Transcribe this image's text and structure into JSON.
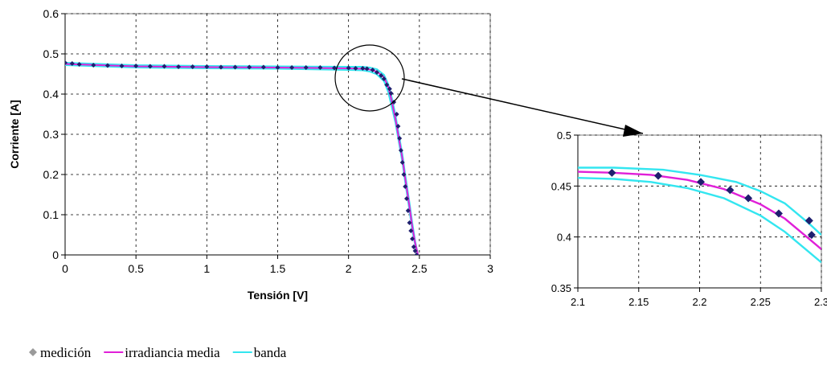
{
  "chart_data": [
    {
      "type": "line",
      "xlabel": "Tensión [V]",
      "ylabel": "Corriente [A]",
      "xlim": [
        0,
        3
      ],
      "ylim": [
        0,
        0.6
      ],
      "xticks": [
        0,
        0.5,
        1,
        1.5,
        2,
        2.5,
        3
      ],
      "yticks": [
        0,
        0.1,
        0.2,
        0.3,
        0.4,
        0.5,
        0.6
      ],
      "xtick_labels": [
        "0",
        "0.5",
        "1",
        "1.5",
        "2",
        "2.5",
        "3"
      ],
      "ytick_labels": [
        "0",
        "0.1",
        "0.2",
        "0.3",
        "0.4",
        "0.5",
        "0.6"
      ],
      "grid": true,
      "annotation": "circle around the knee (~2.2 V, 0.44 A) with an arrow pointing to the zoomed inset",
      "series": [
        {
          "name": "medición",
          "style": "markers",
          "color": "#1f1f6e",
          "x": [
            0.0,
            0.05,
            0.1,
            0.2,
            0.3,
            0.4,
            0.5,
            0.6,
            0.7,
            0.8,
            0.9,
            1.0,
            1.1,
            1.2,
            1.3,
            1.4,
            1.5,
            1.6,
            1.7,
            1.8,
            1.9,
            2.0,
            2.05,
            2.1,
            2.13,
            2.17,
            2.2,
            2.23,
            2.25,
            2.27,
            2.29,
            2.3,
            2.32,
            2.34,
            2.35,
            2.36,
            2.37,
            2.38,
            2.39,
            2.4,
            2.41,
            2.42,
            2.43,
            2.44,
            2.45,
            2.46,
            2.47,
            2.48
          ],
          "y": [
            0.478,
            0.476,
            0.474,
            0.472,
            0.471,
            0.47,
            0.47,
            0.469,
            0.469,
            0.468,
            0.468,
            0.468,
            0.467,
            0.467,
            0.467,
            0.467,
            0.466,
            0.466,
            0.466,
            0.466,
            0.465,
            0.465,
            0.464,
            0.464,
            0.463,
            0.46,
            0.454,
            0.446,
            0.438,
            0.423,
            0.413,
            0.402,
            0.38,
            0.35,
            0.32,
            0.29,
            0.26,
            0.23,
            0.2,
            0.17,
            0.14,
            0.11,
            0.08,
            0.06,
            0.04,
            0.02,
            0.01,
            0.0
          ]
        },
        {
          "name": "irradiancia media",
          "style": "line",
          "color": "#e020d8",
          "x": [
            0.0,
            0.5,
            1.0,
            1.5,
            2.0,
            2.1,
            2.15,
            2.2,
            2.25,
            2.28,
            2.3,
            2.33,
            2.35,
            2.38,
            2.4,
            2.43,
            2.45,
            2.47,
            2.49
          ],
          "y": [
            0.475,
            0.469,
            0.467,
            0.466,
            0.464,
            0.463,
            0.461,
            0.456,
            0.442,
            0.418,
            0.39,
            0.34,
            0.3,
            0.24,
            0.19,
            0.12,
            0.07,
            0.03,
            0.0
          ]
        },
        {
          "name": "banda",
          "style": "line",
          "color": "#33e6f0",
          "x": [
            0.0,
            0.5,
            1.0,
            1.5,
            2.0,
            2.1,
            2.15,
            2.2,
            2.25,
            2.28,
            2.3,
            2.33,
            2.35,
            2.38,
            2.4,
            2.43,
            2.45,
            2.47,
            2.49
          ],
          "y": [
            0.478,
            0.472,
            0.47,
            0.469,
            0.468,
            0.468,
            0.466,
            0.462,
            0.448,
            0.425,
            0.4,
            0.35,
            0.31,
            0.25,
            0.2,
            0.13,
            0.08,
            0.035,
            0.0
          ]
        },
        {
          "name": "banda",
          "style": "line",
          "color": "#33e6f0",
          "x": [
            0.0,
            0.5,
            1.0,
            1.5,
            2.0,
            2.1,
            2.15,
            2.2,
            2.25,
            2.28,
            2.3,
            2.33,
            2.35,
            2.38,
            2.4,
            2.43,
            2.45,
            2.47,
            2.49
          ],
          "y": [
            0.472,
            0.466,
            0.464,
            0.463,
            0.46,
            0.459,
            0.456,
            0.449,
            0.432,
            0.405,
            0.375,
            0.33,
            0.29,
            0.23,
            0.18,
            0.11,
            0.06,
            0.025,
            0.0
          ]
        }
      ]
    },
    {
      "type": "line",
      "xlabel": "",
      "ylabel": "",
      "xlim": [
        2.1,
        2.3
      ],
      "ylim": [
        0.35,
        0.5
      ],
      "xticks": [
        2.1,
        2.15,
        2.2,
        2.25,
        2.3
      ],
      "yticks": [
        0.35,
        0.4,
        0.45,
        0.5
      ],
      "xtick_labels": [
        "2.1",
        "2.15",
        "2.2",
        "2.25",
        "2.3"
      ],
      "ytick_labels": [
        "0.35",
        "0.4",
        "0.45",
        "0.5"
      ],
      "grid": true,
      "series": [
        {
          "name": "medición",
          "style": "markers",
          "color": "#1f1f6e",
          "x": [
            2.128,
            2.166,
            2.201,
            2.225,
            2.24,
            2.265,
            2.29,
            2.292
          ],
          "y": [
            0.463,
            0.46,
            0.454,
            0.446,
            0.438,
            0.423,
            0.416,
            0.402
          ]
        },
        {
          "name": "irradiancia media",
          "style": "line",
          "color": "#e020d8",
          "x": [
            2.1,
            2.13,
            2.16,
            2.19,
            2.22,
            2.25,
            2.27,
            2.29,
            2.3
          ],
          "y": [
            0.464,
            0.463,
            0.461,
            0.456,
            0.447,
            0.432,
            0.418,
            0.398,
            0.388
          ]
        },
        {
          "name": "banda",
          "style": "line",
          "color": "#33e6f0",
          "x": [
            2.1,
            2.13,
            2.17,
            2.2,
            2.23,
            2.25,
            2.27,
            2.29,
            2.3
          ],
          "y": [
            0.468,
            0.468,
            0.466,
            0.461,
            0.454,
            0.445,
            0.433,
            0.413,
            0.402
          ]
        },
        {
          "name": "banda",
          "style": "line",
          "color": "#33e6f0",
          "x": [
            2.1,
            2.13,
            2.16,
            2.19,
            2.22,
            2.25,
            2.27,
            2.29,
            2.3
          ],
          "y": [
            0.458,
            0.457,
            0.454,
            0.448,
            0.438,
            0.421,
            0.405,
            0.385,
            0.375
          ]
        }
      ]
    }
  ],
  "legend": {
    "placement": "bottom-left",
    "items": [
      {
        "label": "medición",
        "kind": "marker",
        "color": "#9a9a9a"
      },
      {
        "label": "irradiancia media",
        "kind": "line",
        "color": "#e020d8"
      },
      {
        "label": "banda",
        "kind": "line",
        "color": "#33e6f0"
      }
    ]
  }
}
